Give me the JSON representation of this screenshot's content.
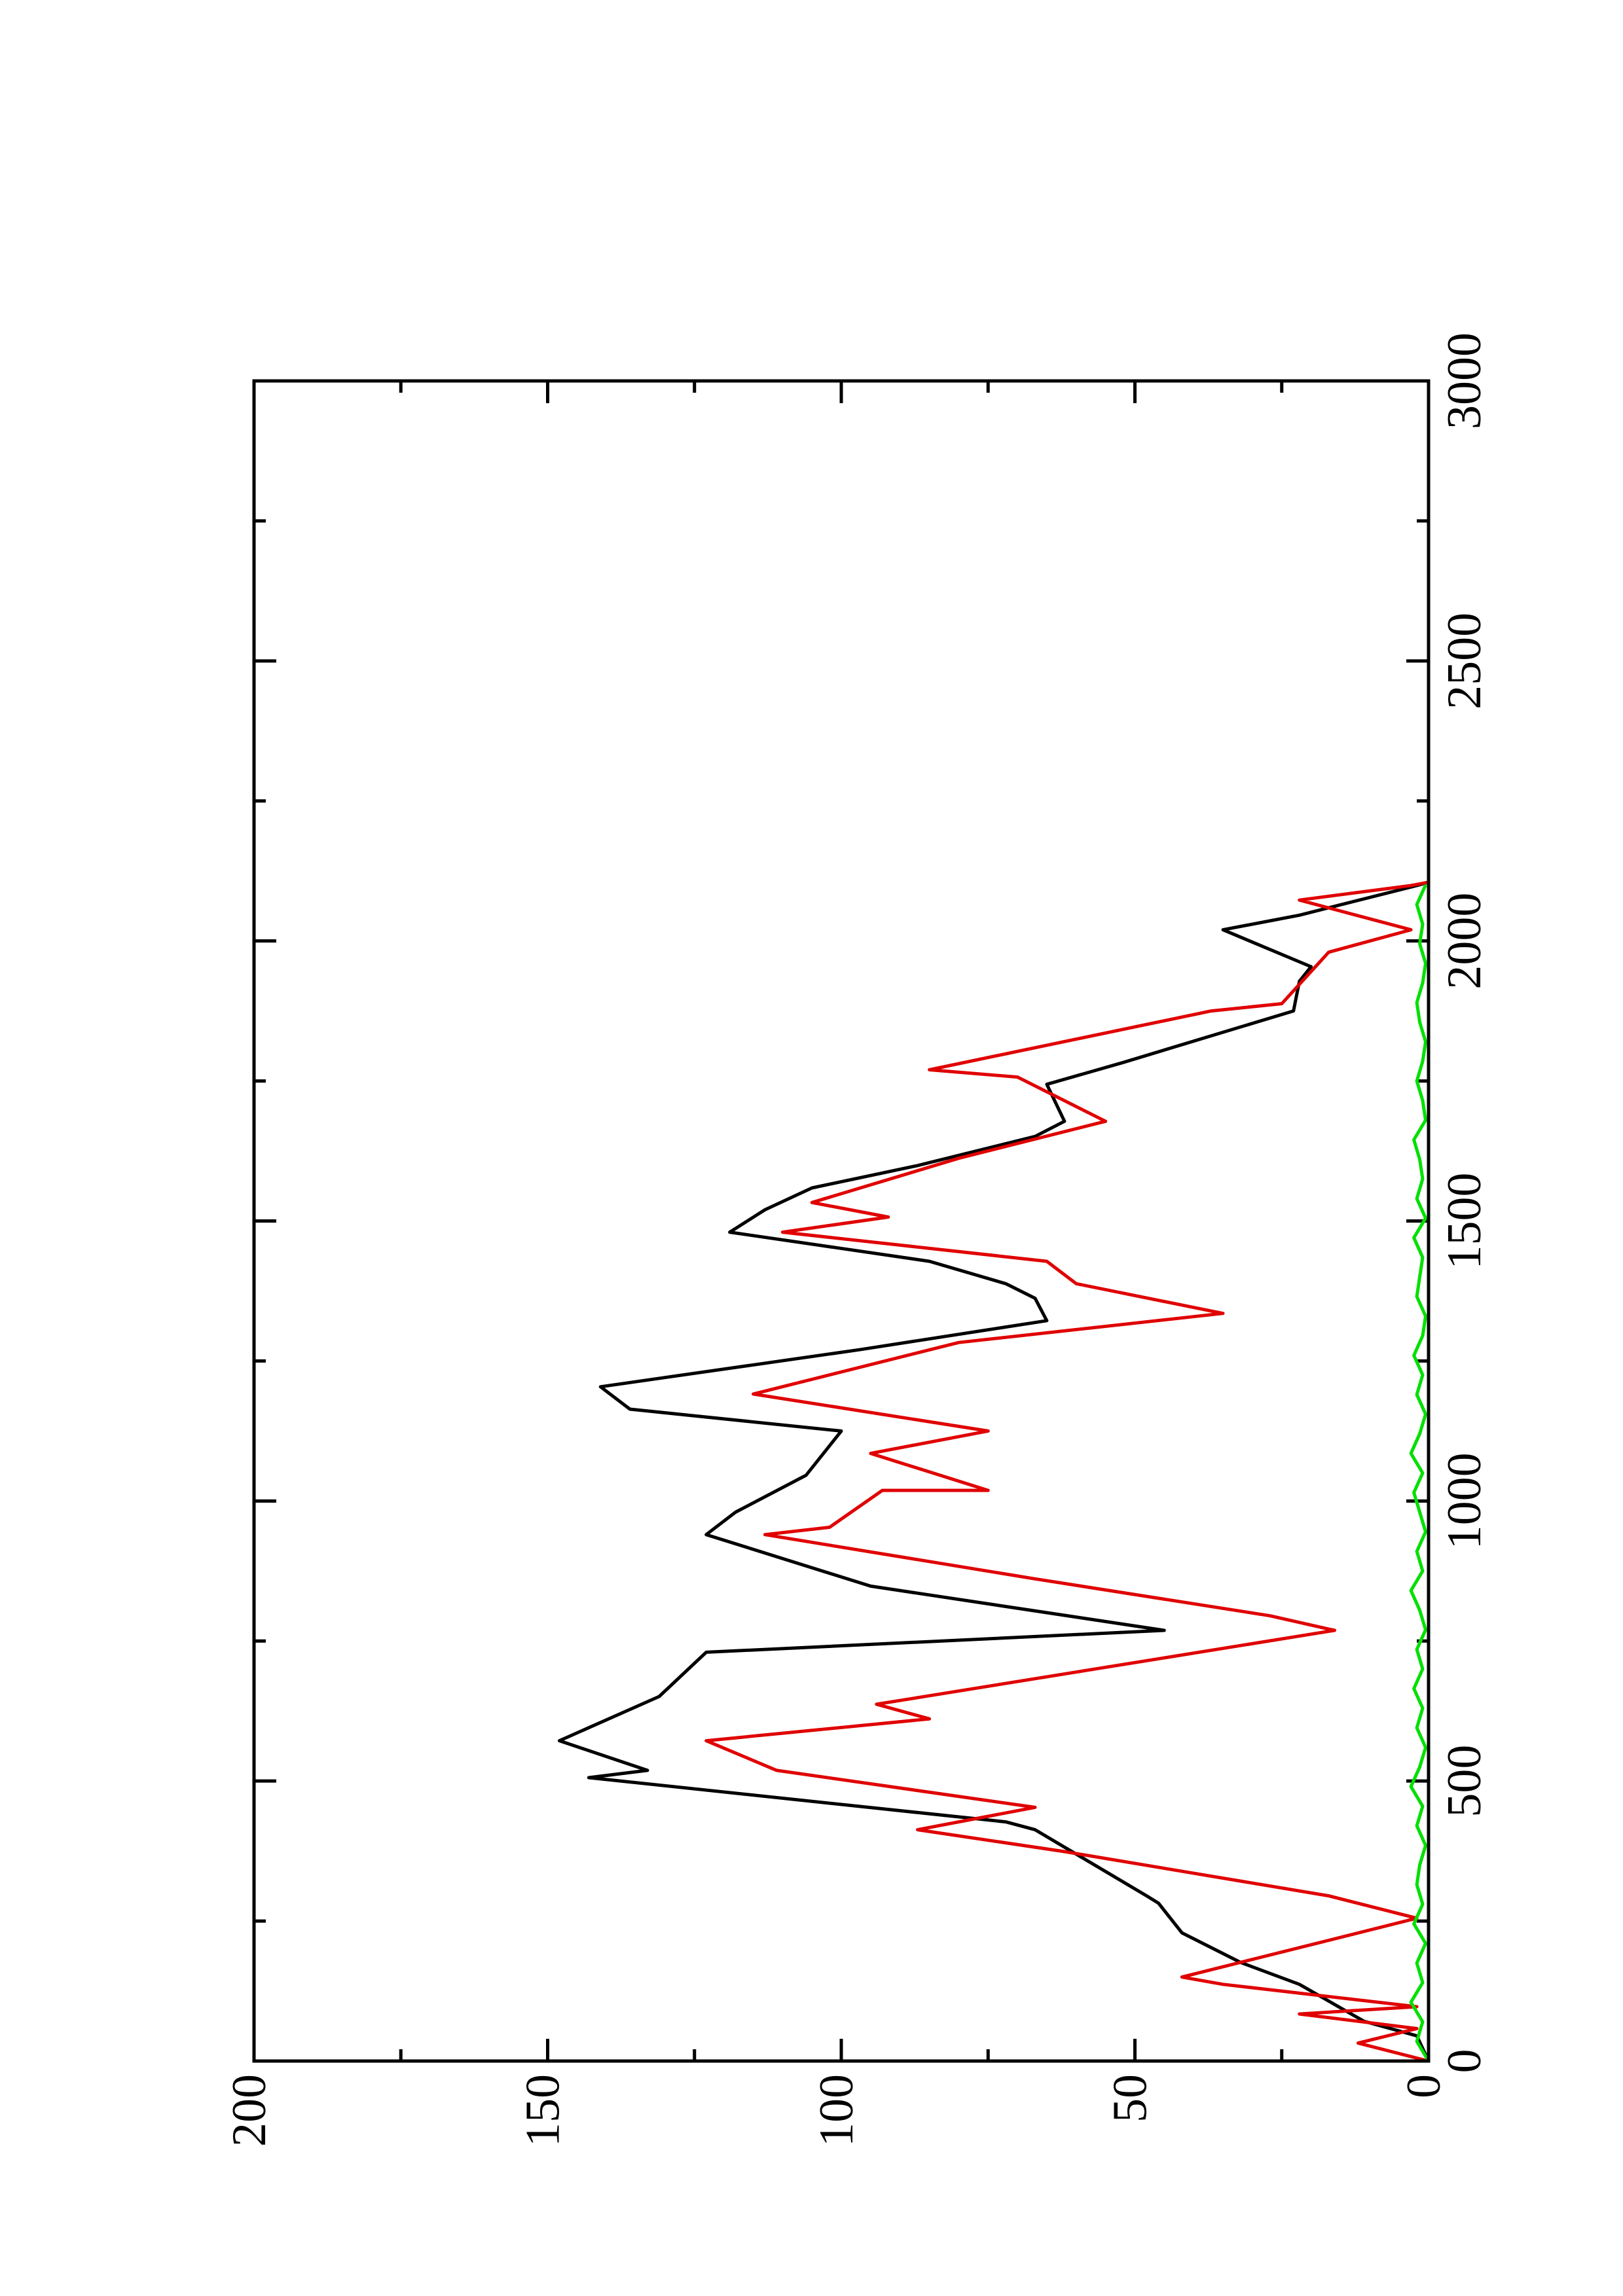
{
  "chart_data": {
    "type": "line",
    "xlim": [
      0,
      3000
    ],
    "xticks": [
      0,
      500,
      1000,
      1500,
      2000,
      2500,
      3000
    ],
    "xminorticks": [
      250,
      750,
      1250,
      1750,
      2250,
      2750
    ],
    "ylim": [
      0,
      200
    ],
    "yticks": [
      0,
      50,
      100,
      150,
      200
    ],
    "yminorticks": [
      25,
      75,
      125,
      175
    ],
    "rotated": true,
    "series": [
      {
        "color": "#000000",
        "x": [
          0,
          45,
          71,
          137,
          176,
          229,
          282,
          295,
          413,
          427,
          506,
          519,
          572,
          651,
          730,
          769,
          848,
          940,
          980,
          1046,
          1125,
          1164,
          1204,
          1270,
          1322,
          1362,
          1388,
          1428,
          1480,
          1520,
          1559,
          1599,
          1651,
          1678,
          1744,
          1783,
          1875,
          1928,
          1954,
          2020,
          2046,
          2099,
          2105
        ],
        "values": [
          0,
          2,
          11,
          22,
          32,
          42,
          46,
          48,
          67,
          72,
          143,
          133,
          148,
          131,
          123,
          45,
          95,
          123,
          118,
          106,
          100,
          136,
          141,
          97,
          65,
          67,
          72,
          85,
          119,
          113,
          105,
          87,
          67,
          62,
          65,
          52,
          23,
          22,
          20,
          35,
          22,
          2,
          0
        ]
      },
      {
        "color": "#e00000",
        "x": [
          0,
          32,
          58,
          84,
          97,
          137,
          150,
          255,
          295,
          374,
          413,
          453,
          519,
          572,
          611,
          637,
          769,
          795,
          861,
          940,
          953,
          1019,
          1019,
          1085,
          1125,
          1191,
          1283,
          1335,
          1388,
          1428,
          1480,
          1507,
          1533,
          1612,
          1678,
          1757,
          1770,
          1875,
          1888,
          1980,
          2020,
          2073,
          2099,
          2105
        ],
        "values": [
          0,
          12,
          2,
          22,
          2,
          35,
          42,
          2,
          17,
          62,
          87,
          67,
          111,
          123,
          85,
          94,
          16,
          27,
          67,
          113,
          102,
          93,
          75,
          95,
          75,
          115,
          80,
          35,
          60,
          65,
          110,
          92,
          105,
          80,
          55,
          70,
          85,
          37,
          25,
          17,
          3,
          22,
          3,
          0
        ]
      },
      {
        "color": "#00e000",
        "x": [
          0,
          35,
          70,
          105,
          140,
          175,
          210,
          245,
          280,
          315,
          350,
          385,
          420,
          455,
          490,
          525,
          560,
          595,
          630,
          665,
          700,
          735,
          770,
          805,
          840,
          875,
          910,
          945,
          980,
          1015,
          1050,
          1085,
          1120,
          1155,
          1190,
          1225,
          1260,
          1295,
          1330,
          1365,
          1400,
          1435,
          1470,
          1505,
          1540,
          1575,
          1610,
          1645,
          1680,
          1715,
          1750,
          1785,
          1820,
          1855,
          1890,
          1925,
          1960,
          1995,
          2030,
          2065,
          2100
        ],
        "values": [
          0,
          2,
          1,
          3,
          1,
          2,
          0.5,
          2.5,
          1,
          2,
          1.5,
          0.5,
          2,
          1,
          3,
          1.5,
          0.5,
          2,
          1,
          2.5,
          1,
          2,
          0.5,
          1.5,
          3,
          1,
          2,
          0.5,
          1.5,
          2.5,
          1,
          3,
          1.5,
          0.5,
          2,
          1,
          2.5,
          1,
          0.5,
          2,
          1.5,
          1,
          2.5,
          0.5,
          2,
          1,
          1.5,
          2.5,
          0.5,
          1,
          2,
          1,
          0.5,
          1.5,
          2,
          1,
          0.5,
          1.5,
          1,
          2,
          0.5
        ]
      }
    ]
  }
}
